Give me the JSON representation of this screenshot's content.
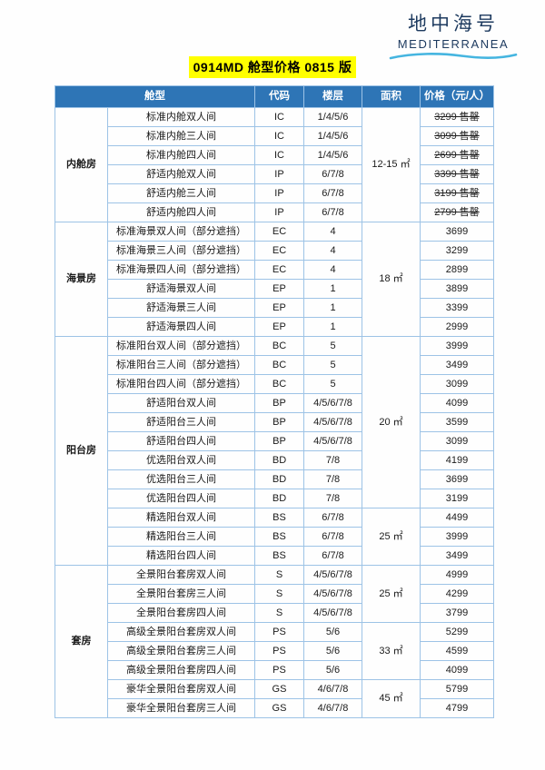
{
  "logo": {
    "title_cn": "地中海号",
    "title_en": "MEDITERRANEA",
    "text_color": "#1d3a5f",
    "wave_color": "#45b5e0"
  },
  "title": {
    "text": "0914MD 舱型价格 0815 版",
    "highlight_color": "#ffff00"
  },
  "table": {
    "header": {
      "cabin_type": "舱型",
      "code": "代码",
      "floor": "楼层",
      "area": "面积",
      "price": "价格（元/人）"
    },
    "header_bg": "#2e75b6",
    "border_color": "#9dc3e6",
    "sold_out_label": "售罄",
    "groups": [
      {
        "name": "内舱房",
        "areas": [
          {
            "label": "12-15 ㎡",
            "span": 6
          }
        ],
        "rows": [
          {
            "room": "标准内舱双人间",
            "code": "IC",
            "floor": "1/4/5/6",
            "price": "3299",
            "sold_out": true
          },
          {
            "room": "标准内舱三人间",
            "code": "IC",
            "floor": "1/4/5/6",
            "price": "3099",
            "sold_out": true
          },
          {
            "room": "标准内舱四人间",
            "code": "IC",
            "floor": "1/4/5/6",
            "price": "2699",
            "sold_out": true
          },
          {
            "room": "舒适内舱双人间",
            "code": "IP",
            "floor": "6/7/8",
            "price": "3399",
            "sold_out": true
          },
          {
            "room": "舒适内舱三人间",
            "code": "IP",
            "floor": "6/7/8",
            "price": "3199",
            "sold_out": true
          },
          {
            "room": "舒适内舱四人间",
            "code": "IP",
            "floor": "6/7/8",
            "price": "2799",
            "sold_out": true
          }
        ]
      },
      {
        "name": "海景房",
        "areas": [
          {
            "label": "18 ㎡",
            "span": 6
          }
        ],
        "rows": [
          {
            "room": "标准海景双人间（部分遮挡）",
            "code": "EC",
            "floor": "4",
            "price": "3699",
            "sold_out": false
          },
          {
            "room": "标准海景三人间（部分遮挡）",
            "code": "EC",
            "floor": "4",
            "price": "3299",
            "sold_out": false
          },
          {
            "room": "标准海景四人间（部分遮挡）",
            "code": "EC",
            "floor": "4",
            "price": "2899",
            "sold_out": false
          },
          {
            "room": "舒适海景双人间",
            "code": "EP",
            "floor": "1",
            "price": "3899",
            "sold_out": false
          },
          {
            "room": "舒适海景三人间",
            "code": "EP",
            "floor": "1",
            "price": "3399",
            "sold_out": false
          },
          {
            "room": "舒适海景四人间",
            "code": "EP",
            "floor": "1",
            "price": "2999",
            "sold_out": false
          }
        ]
      },
      {
        "name": "阳台房",
        "areas": [
          {
            "label": "20 ㎡",
            "span": 9
          },
          {
            "label": "25 ㎡",
            "span": 3
          }
        ],
        "rows": [
          {
            "room": "标准阳台双人间（部分遮挡）",
            "code": "BC",
            "floor": "5",
            "price": "3999",
            "sold_out": false
          },
          {
            "room": "标准阳台三人间（部分遮挡）",
            "code": "BC",
            "floor": "5",
            "price": "3499",
            "sold_out": false
          },
          {
            "room": "标准阳台四人间（部分遮挡）",
            "code": "BC",
            "floor": "5",
            "price": "3099",
            "sold_out": false
          },
          {
            "room": "舒适阳台双人间",
            "code": "BP",
            "floor": "4/5/6/7/8",
            "price": "4099",
            "sold_out": false
          },
          {
            "room": "舒适阳台三人间",
            "code": "BP",
            "floor": "4/5/6/7/8",
            "price": "3599",
            "sold_out": false
          },
          {
            "room": "舒适阳台四人间",
            "code": "BP",
            "floor": "4/5/6/7/8",
            "price": "3099",
            "sold_out": false
          },
          {
            "room": "优选阳台双人间",
            "code": "BD",
            "floor": "7/8",
            "price": "4199",
            "sold_out": false
          },
          {
            "room": "优选阳台三人间",
            "code": "BD",
            "floor": "7/8",
            "price": "3699",
            "sold_out": false
          },
          {
            "room": "优选阳台四人间",
            "code": "BD",
            "floor": "7/8",
            "price": "3199",
            "sold_out": false
          },
          {
            "room": "精选阳台双人间",
            "code": "BS",
            "floor": "6/7/8",
            "price": "4499",
            "sold_out": false
          },
          {
            "room": "精选阳台三人间",
            "code": "BS",
            "floor": "6/7/8",
            "price": "3999",
            "sold_out": false
          },
          {
            "room": "精选阳台四人间",
            "code": "BS",
            "floor": "6/7/8",
            "price": "3499",
            "sold_out": false
          }
        ]
      },
      {
        "name": "套房",
        "areas": [
          {
            "label": "25 ㎡",
            "span": 3
          },
          {
            "label": "33 ㎡",
            "span": 3
          },
          {
            "label": "45 ㎡",
            "span": 2
          }
        ],
        "rows": [
          {
            "room": "全景阳台套房双人间",
            "code": "S",
            "floor": "4/5/6/7/8",
            "price": "4999",
            "sold_out": false
          },
          {
            "room": "全景阳台套房三人间",
            "code": "S",
            "floor": "4/5/6/7/8",
            "price": "4299",
            "sold_out": false
          },
          {
            "room": "全景阳台套房四人间",
            "code": "S",
            "floor": "4/5/6/7/8",
            "price": "3799",
            "sold_out": false
          },
          {
            "room": "高级全景阳台套房双人间",
            "code": "PS",
            "floor": "5/6",
            "price": "5299",
            "sold_out": false
          },
          {
            "room": "高级全景阳台套房三人间",
            "code": "PS",
            "floor": "5/6",
            "price": "4599",
            "sold_out": false
          },
          {
            "room": "高级全景阳台套房四人间",
            "code": "PS",
            "floor": "5/6",
            "price": "4099",
            "sold_out": false
          },
          {
            "room": "豪华全景阳台套房双人间",
            "code": "GS",
            "floor": "4/6/7/8",
            "price": "5799",
            "sold_out": false
          },
          {
            "room": "豪华全景阳台套房三人间",
            "code": "GS",
            "floor": "4/6/7/8",
            "price": "4799",
            "sold_out": false
          }
        ]
      }
    ]
  }
}
